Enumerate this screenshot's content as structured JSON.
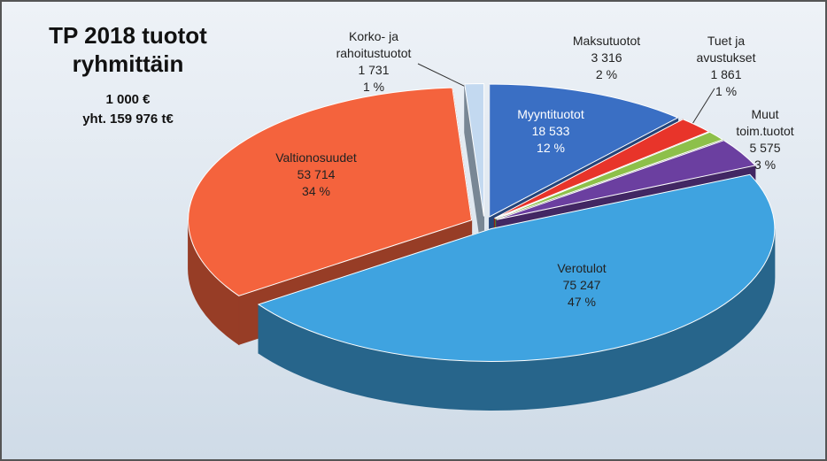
{
  "chart_data": {
    "type": "pie",
    "title": "TP 2018 tuotot ryhmittäin",
    "subtitle": "1 000 €",
    "total_label": "yht. 159 976 t€",
    "categories": [
      "Myyntituotot",
      "Maksutuotot",
      "Tuet ja avustukset",
      "Muut toim.tuotot",
      "Verotulot",
      "Valtionosuudet",
      "Korko- ja rahoitustuotot"
    ],
    "values": [
      18533,
      3316,
      1861,
      5575,
      75247,
      53714,
      1731
    ],
    "value_labels": [
      "18 533",
      "3 316",
      "1 861",
      "5 575",
      "75 247",
      "53 714",
      "1 731"
    ],
    "percent_labels": [
      "12 %",
      "2 %",
      "1 %",
      "3 %",
      "47 %",
      "34 %",
      "1 %"
    ],
    "colors": [
      "#3a6fc4",
      "#e8342a",
      "#8dc04a",
      "#6b3fa0",
      "#3fa3e0",
      "#f4633d",
      "#c3d9f0"
    ]
  }
}
